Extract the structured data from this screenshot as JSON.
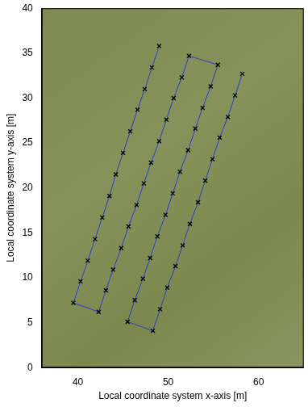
{
  "chart_data": {
    "type": "scatter",
    "x_label": "Local coordinate system x-axis [m]",
    "y_label": "Local coordinate system y-axis [m]",
    "x": [
      49.0,
      48.2,
      47.4,
      46.6,
      45.8,
      45.0,
      44.2,
      43.5,
      42.7,
      41.9,
      41.1,
      40.3,
      39.5,
      42.3,
      43.1,
      43.9,
      44.8,
      45.6,
      46.5,
      47.3,
      48.1,
      49.0,
      49.8,
      50.6,
      51.5,
      52.3,
      55.5,
      54.7,
      53.8,
      53.0,
      52.2,
      51.3,
      50.5,
      49.7,
      48.8,
      48.0,
      47.2,
      46.3,
      45.5,
      48.3,
      49.1,
      49.9,
      50.8,
      51.6,
      52.4,
      53.3,
      54.1,
      54.9,
      55.7,
      56.6,
      57.4,
      58.2
    ],
    "values": [
      35.8,
      33.4,
      31.0,
      28.7,
      26.3,
      23.9,
      21.5,
      19.1,
      16.7,
      14.3,
      11.9,
      9.6,
      7.2,
      6.2,
      8.6,
      10.9,
      13.3,
      15.7,
      18.1,
      20.5,
      22.8,
      25.2,
      27.6,
      30.0,
      32.3,
      34.7,
      33.7,
      31.3,
      28.9,
      26.6,
      24.2,
      21.8,
      19.4,
      17.0,
      14.6,
      12.2,
      9.9,
      7.5,
      5.1,
      4.1,
      6.5,
      8.9,
      11.3,
      13.6,
      16.0,
      18.4,
      20.8,
      23.2,
      25.6,
      27.9,
      30.3,
      32.7
    ],
    "color": "#2b3bd6",
    "marker": "x",
    "line_style": "solid",
    "xlim": [
      36,
      65
    ],
    "xticks": [
      40,
      50,
      60
    ],
    "ylim": [
      0,
      40
    ],
    "yticks": [
      0,
      5,
      10,
      15,
      20,
      25,
      30,
      35,
      40
    ],
    "grid": false
  }
}
